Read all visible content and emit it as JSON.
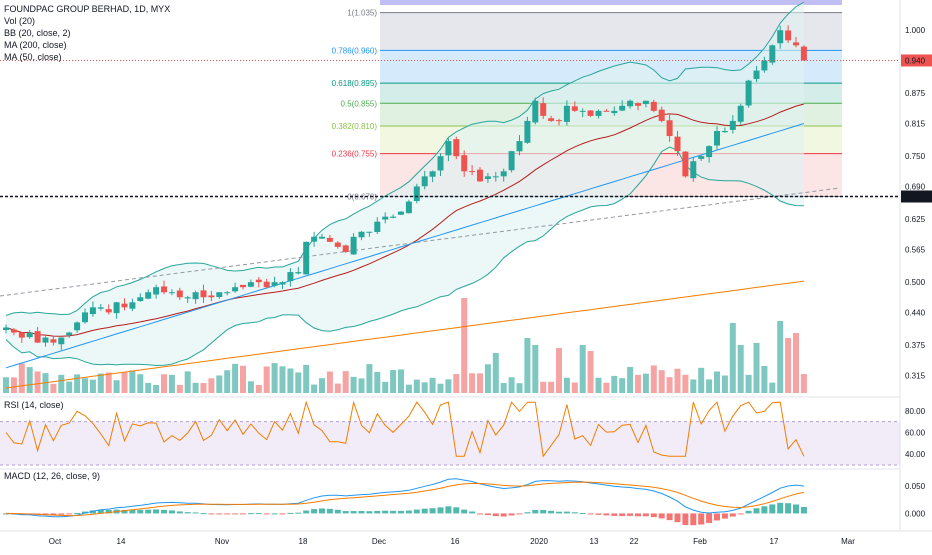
{
  "header": {
    "title": "FOUNDPAC GROUP BERHAD, 1D, MYX",
    "indicators": [
      "Vol (20)",
      "BB (20, close, 2)",
      "MA (200, close)",
      "MA (50, close)"
    ]
  },
  "price_axis": {
    "ticks": [
      "1.000",
      "0.940",
      "0.875",
      "0.815",
      "0.750",
      "0.690",
      "0.670",
      "0.625",
      "0.565",
      "0.500",
      "0.440",
      "0.375",
      "0.315"
    ],
    "last_price_label": "0.940",
    "level_label": "0.670"
  },
  "fib_levels": [
    {
      "label": "1(1.035)",
      "value": 1.035,
      "color": "#787b86"
    },
    {
      "label": "0.786(0.960)",
      "value": 0.96,
      "color": "#2196f3"
    },
    {
      "label": "0.618(0.895)",
      "value": 0.895,
      "color": "#089981"
    },
    {
      "label": "0.5(0.855)",
      "value": 0.855,
      "color": "#4caf50"
    },
    {
      "label": "0.382(0.810)",
      "value": 0.81,
      "color": "#8bc34a"
    },
    {
      "label": "0.236(0.755)",
      "value": 0.755,
      "color": "#f23645"
    },
    {
      "label": "0(0.670)",
      "value": 0.67,
      "color": "#787b86"
    }
  ],
  "rsi": {
    "label": "RSI (14, close)",
    "ticks": [
      "80.00",
      "60.00",
      "40.00"
    ],
    "upper": 70,
    "lower": 30
  },
  "macd": {
    "label": "MACD (12, 26, close, 9)",
    "ticks": [
      "0.050",
      "0.000"
    ]
  },
  "time_axis": {
    "labels": [
      "Oct",
      "14",
      "Nov",
      "18",
      "Dec",
      "16",
      "2020",
      "13",
      "22",
      "Feb",
      "17",
      "Mar"
    ]
  },
  "chart_data": {
    "type": "candlestick",
    "title": "FOUNDPAC GROUP BERHAD, 1D, MYX",
    "ylim": [
      0.28,
      1.06
    ],
    "x_axis": [
      "Oct",
      "14",
      "Nov",
      "18",
      "Dec",
      "16",
      "2020",
      "13",
      "22",
      "Feb",
      "17",
      "Mar"
    ],
    "series": [
      {
        "name": "Price",
        "close": [
          0.41,
          0.4,
          0.39,
          0.4,
          0.38,
          0.39,
          0.38,
          0.39,
          0.4,
          0.42,
          0.44,
          0.45,
          0.45,
          0.44,
          0.46,
          0.45,
          0.46,
          0.47,
          0.48,
          0.49,
          0.48,
          0.48,
          0.47,
          0.47,
          0.48,
          0.47,
          0.47,
          0.48,
          0.48,
          0.49,
          0.49,
          0.5,
          0.5,
          0.49,
          0.5,
          0.5,
          0.52,
          0.52,
          0.58,
          0.59,
          0.59,
          0.58,
          0.57,
          0.56,
          0.59,
          0.6,
          0.6,
          0.62,
          0.63,
          0.63,
          0.64,
          0.66,
          0.69,
          0.71,
          0.72,
          0.75,
          0.78,
          0.75,
          0.72,
          0.72,
          0.7,
          0.71,
          0.71,
          0.72,
          0.76,
          0.78,
          0.82,
          0.86,
          0.83,
          0.82,
          0.82,
          0.85,
          0.84,
          0.84,
          0.83,
          0.84,
          0.84,
          0.84,
          0.85,
          0.86,
          0.85,
          0.86,
          0.84,
          0.82,
          0.79,
          0.76,
          0.71,
          0.74,
          0.75,
          0.77,
          0.8,
          0.8,
          0.82,
          0.85,
          0.9,
          0.92,
          0.94,
          0.97,
          1.0,
          0.98,
          0.97,
          0.94
        ]
      },
      {
        "name": "MA (50, close)"
      },
      {
        "name": "MA (200, close)"
      },
      {
        "name": "BB (20, close, 2)"
      },
      {
        "name": "Vol (20)"
      },
      {
        "name": "RSI (14, close)"
      },
      {
        "name": "MACD (12, 26, close, 9)"
      }
    ]
  }
}
